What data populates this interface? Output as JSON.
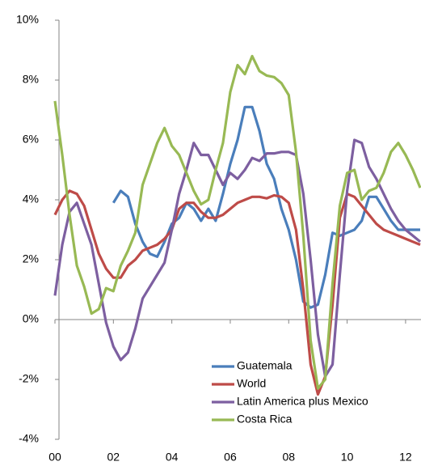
{
  "chart_data": {
    "type": "line",
    "categories": [
      "00",
      null,
      null,
      null,
      null,
      null,
      null,
      null,
      "02",
      null,
      null,
      null,
      null,
      null,
      null,
      null,
      "04",
      null,
      null,
      null,
      null,
      null,
      null,
      null,
      "06",
      null,
      null,
      null,
      null,
      null,
      null,
      null,
      "08",
      null,
      null,
      null,
      null,
      null,
      null,
      null,
      "10",
      null,
      null,
      null,
      null,
      null,
      null,
      null,
      "12",
      null,
      null
    ],
    "ylim": [
      -4,
      10
    ],
    "yticks": [
      {
        "value": -4,
        "label": "-4%"
      },
      {
        "value": -2,
        "label": "-2%"
      },
      {
        "value": 0,
        "label": "0%"
      },
      {
        "value": 2,
        "label": "2%"
      },
      {
        "value": 4,
        "label": "4%"
      },
      {
        "value": 6,
        "label": "6%"
      },
      {
        "value": 8,
        "label": "8%"
      },
      {
        "value": 10,
        "label": "10%"
      }
    ],
    "series": [
      {
        "name": "Guatemala",
        "color": "#4a7ebb",
        "values": [
          null,
          null,
          null,
          null,
          null,
          null,
          null,
          null,
          3.9,
          4.3,
          4.1,
          3.2,
          2.6,
          2.2,
          2.1,
          2.6,
          3.2,
          3.4,
          3.9,
          3.7,
          3.3,
          3.7,
          3.3,
          4.2,
          5.2,
          6.0,
          7.1,
          7.1,
          6.3,
          5.2,
          4.7,
          3.7,
          3.0,
          2.0,
          0.6,
          0.4,
          0.5,
          1.5,
          2.9,
          2.8,
          2.9,
          3.0,
          3.3,
          4.1,
          4.1,
          3.7,
          3.3,
          3.0,
          3.0,
          3.0,
          3.0
        ]
      },
      {
        "name": "World",
        "color": "#be4b48",
        "values": [
          3.5,
          4.0,
          4.3,
          4.2,
          3.8,
          3.0,
          2.2,
          1.7,
          1.4,
          1.4,
          1.8,
          2.0,
          2.3,
          2.4,
          2.5,
          2.7,
          3.0,
          3.7,
          3.9,
          3.9,
          3.6,
          3.4,
          3.4,
          3.5,
          3.7,
          3.9,
          4.0,
          4.1,
          4.1,
          4.05,
          4.15,
          4.1,
          3.9,
          3.0,
          1.0,
          -1.5,
          -2.5,
          -1.9,
          0.5,
          3.4,
          4.2,
          4.1,
          3.8,
          3.5,
          3.2,
          3.0,
          2.9,
          2.8,
          2.7,
          2.6,
          2.5
        ]
      },
      {
        "name": "Latin America plus Mexico",
        "color": "#7d5fa0",
        "values": [
          0.8,
          2.5,
          3.6,
          3.9,
          3.2,
          2.5,
          1.2,
          -0.1,
          -0.9,
          -1.35,
          -1.1,
          -0.3,
          0.7,
          1.1,
          1.5,
          1.9,
          3.0,
          4.2,
          5.0,
          5.9,
          5.5,
          5.5,
          5.0,
          4.5,
          4.9,
          4.7,
          5.0,
          5.4,
          5.3,
          5.55,
          5.55,
          5.6,
          5.6,
          5.5,
          4.2,
          2.0,
          -0.5,
          -1.9,
          -1.5,
          1.5,
          4.3,
          6.0,
          5.9,
          5.1,
          4.7,
          4.2,
          3.7,
          3.3,
          3.0,
          2.8,
          2.6
        ]
      },
      {
        "name": "Costa Rica",
        "color": "#98b954",
        "values": [
          7.3,
          5.5,
          3.5,
          1.8,
          1.1,
          0.2,
          0.35,
          1.05,
          0.95,
          1.8,
          2.3,
          2.9,
          4.5,
          5.2,
          5.9,
          6.4,
          5.8,
          5.5,
          4.9,
          4.3,
          3.85,
          4.0,
          5.0,
          5.9,
          7.6,
          8.5,
          8.2,
          8.8,
          8.3,
          8.15,
          8.1,
          7.9,
          7.5,
          5.6,
          2.8,
          -0.7,
          -2.3,
          -2.0,
          1.2,
          3.8,
          4.9,
          5.0,
          4.0,
          4.3,
          4.4,
          4.9,
          5.6,
          5.9,
          5.5,
          5.0,
          4.4
        ]
      }
    ],
    "legend": "lower-right"
  }
}
